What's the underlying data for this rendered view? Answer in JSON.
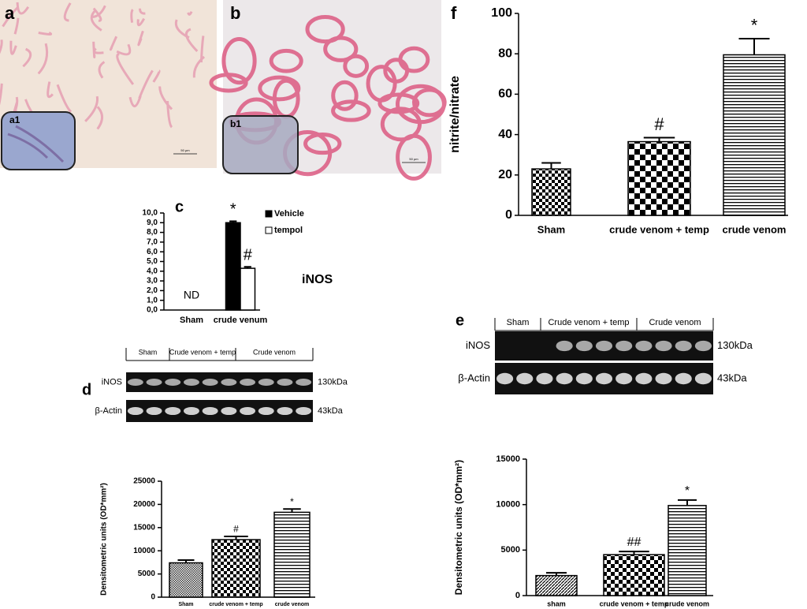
{
  "panels": {
    "a": "a",
    "a1": "a1",
    "b": "b",
    "b1": "b1",
    "c": "c",
    "d": "d",
    "e": "e",
    "f": "f",
    "scale_a": "50 µm",
    "scale_b": "50 µm"
  },
  "blots": [
    {
      "groups": [
        "Sham",
        "Crude venom + temp",
        "Crude venom"
      ],
      "rows": [
        "iNOS",
        "β-Actin"
      ],
      "sizes": [
        "130kDa",
        "43kDa"
      ]
    },
    {
      "groups": [
        "Sham",
        "Crude venom + temp",
        "Crude venom"
      ],
      "rows": [
        "iNOS",
        "β-Actin"
      ],
      "sizes": [
        "130kDa",
        "43kDa"
      ]
    }
  ],
  "chart_data": [
    {
      "type": "bar",
      "y_label": "nitrite/nitrate",
      "categories": [
        "Sham",
        "crude venom + temp",
        "crude venom"
      ],
      "values": [
        23,
        36.5,
        79.5
      ],
      "errors": [
        3,
        2,
        8
      ],
      "ylim": [
        0,
        100
      ],
      "yticks": [
        0,
        20,
        40,
        60,
        80,
        100
      ],
      "annotations": [
        {
          "category": 1,
          "text": "#"
        },
        {
          "category": 2,
          "text": "*"
        }
      ]
    },
    {
      "type": "bar",
      "categories": [
        "Sham",
        "crude venum"
      ],
      "series": [
        {
          "name": "Vehicle",
          "color": "#000000",
          "values": [
            null,
            9.0
          ],
          "errors": [
            null,
            0.15
          ]
        },
        {
          "name": "tempol",
          "color": "#ffffff",
          "values": [
            null,
            4.3
          ],
          "errors": [
            null,
            0.15
          ]
        }
      ],
      "ylim": [
        0,
        10
      ],
      "yticks": [
        {
          "value": 0,
          "label": "0,0"
        },
        {
          "value": 1,
          "label": "1,0"
        },
        {
          "value": 2,
          "label": "2,0"
        },
        {
          "value": 3,
          "label": "3,0"
        },
        {
          "value": 4,
          "label": "4,0"
        },
        {
          "value": 5,
          "label": "5,0"
        },
        {
          "value": 6,
          "label": "6,0"
        },
        {
          "value": 7,
          "label": "7,0"
        },
        {
          "value": 8,
          "label": "8,0"
        },
        {
          "value": 9,
          "label": "9,0"
        },
        {
          "value": 10,
          "label": "10,0"
        }
      ],
      "annotations": [
        {
          "category": 0,
          "text": "ND"
        },
        {
          "category": 1,
          "series": 0,
          "text": "*"
        },
        {
          "category": 1,
          "series": 1,
          "text": "#"
        }
      ],
      "side_label": "iNOS"
    },
    {
      "type": "bar",
      "y_label": "Densitometric units (OD*mm²)",
      "categories": [
        "Sham",
        "crude venom + temp",
        "crude venom"
      ],
      "values": [
        7400,
        12400,
        18300
      ],
      "errors": [
        600,
        700,
        700
      ],
      "ylim": [
        0,
        25000
      ],
      "yticks": [
        0,
        5000,
        10000,
        15000,
        20000,
        25000
      ],
      "annotations": [
        {
          "category": 1,
          "text": "#"
        },
        {
          "category": 2,
          "text": "*"
        }
      ]
    },
    {
      "type": "bar",
      "y_label": "Densitometric units (OD*mm²)",
      "categories": [
        "sham",
        "crude venom + temp",
        "crude venom"
      ],
      "values": [
        2200,
        4500,
        9900
      ],
      "errors": [
        300,
        350,
        600
      ],
      "ylim": [
        0,
        15000
      ],
      "yticks": [
        0,
        5000,
        10000,
        15000
      ],
      "annotations": [
        {
          "category": 1,
          "text": "##"
        },
        {
          "category": 2,
          "text": "*"
        }
      ]
    }
  ]
}
